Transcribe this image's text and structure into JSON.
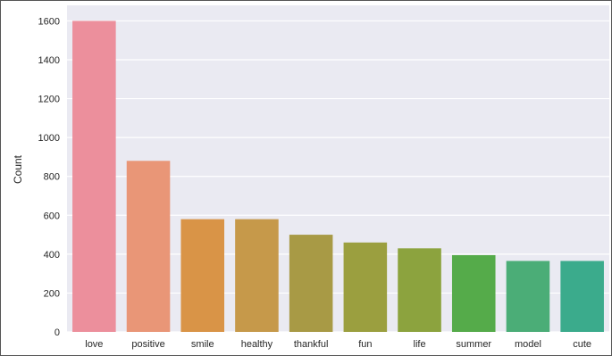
{
  "chart_data": {
    "type": "bar",
    "title": "",
    "xlabel": "",
    "ylabel": "Count",
    "categories": [
      "love",
      "positive",
      "smile",
      "healthy",
      "thankful",
      "fun",
      "life",
      "summer",
      "model",
      "cute"
    ],
    "values": [
      1600,
      880,
      580,
      580,
      500,
      460,
      430,
      395,
      365,
      365
    ],
    "ylim": [
      0,
      1680
    ],
    "yticks": [
      0,
      200,
      400,
      600,
      800,
      1000,
      1200,
      1400,
      1600
    ],
    "grid": true,
    "legend": "none",
    "background": "#eaeaf2",
    "colors": [
      "#ec8f9c",
      "#e99677",
      "#d99447",
      "#c6994a",
      "#a89a45",
      "#9b9f3f",
      "#8ca33e",
      "#55ab4a",
      "#4bad77",
      "#3bab8c"
    ]
  }
}
